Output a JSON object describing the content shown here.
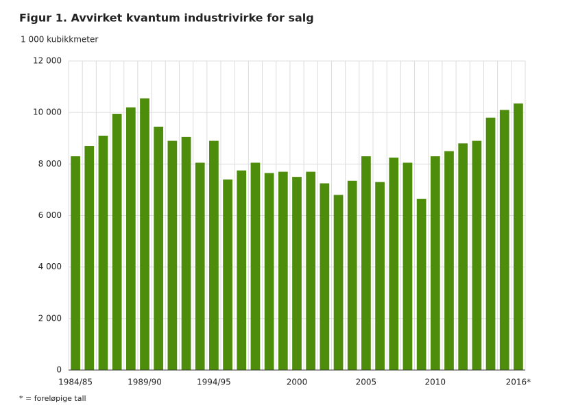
{
  "chart_data": {
    "type": "bar",
    "title": "Figur 1. Avvirket kvantum industrivirke for salg",
    "y_unit": "1 000 kubikkmeter",
    "footnote": "* = foreløpige tall",
    "categories": [
      "1984/85",
      null,
      null,
      null,
      null,
      "1989/90",
      null,
      null,
      null,
      null,
      "1994/95",
      null,
      null,
      null,
      null,
      null,
      "2000",
      null,
      null,
      null,
      null,
      "2005",
      null,
      null,
      null,
      null,
      "2010",
      null,
      null,
      null,
      null,
      null,
      "2016*"
    ],
    "values": [
      8300,
      8700,
      9100,
      9950,
      10200,
      10550,
      9450,
      8900,
      9050,
      8050,
      8900,
      7400,
      7750,
      8050,
      7650,
      7700,
      7500,
      7700,
      7250,
      6800,
      7350,
      8300,
      7300,
      8250,
      8050,
      6650,
      8300,
      8500,
      8800,
      8900,
      9800,
      10100,
      10350
    ],
    "color": "#4e8c0c",
    "ylim": [
      0,
      12000
    ],
    "yticks": [
      {
        "value": 0,
        "label": "0"
      },
      {
        "value": 2000,
        "label": "2 000"
      },
      {
        "value": 4000,
        "label": "4 000"
      },
      {
        "value": 6000,
        "label": "6 000"
      },
      {
        "value": 8000,
        "label": "8 000"
      },
      {
        "value": 10000,
        "label": "10 000"
      },
      {
        "value": 12000,
        "label": "12 000"
      }
    ],
    "grid": true
  }
}
